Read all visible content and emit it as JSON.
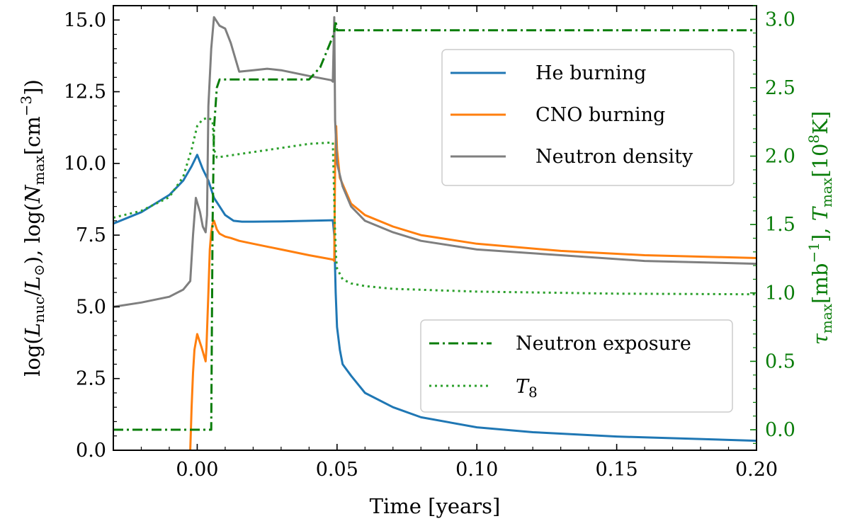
{
  "chart_data": {
    "type": "line",
    "xlabel": "Time [years]",
    "ylabel_left": "log(L_nuc/L_⊙), log(N_max[cm^−3])",
    "ylabel_right": "τ_max[mb^−1], T_max[10^8K]",
    "xlim": [
      -0.03,
      0.2
    ],
    "ylim_left": [
      0.0,
      15.5
    ],
    "ylim_right": [
      -0.15,
      3.1
    ],
    "x_ticks": [
      0.0,
      0.05,
      0.1,
      0.15,
      0.2
    ],
    "x_tick_labels": [
      "0.00",
      "0.05",
      "0.10",
      "0.15",
      "0.20"
    ],
    "y_left_ticks": [
      0.0,
      2.5,
      5.0,
      7.5,
      10.0,
      12.5,
      15.0
    ],
    "y_left_tick_labels": [
      "0.0",
      "2.5",
      "5.0",
      "7.5",
      "10.0",
      "12.5",
      "15.0"
    ],
    "y_right_ticks": [
      0.0,
      0.5,
      1.0,
      1.5,
      2.0,
      2.5,
      3.0
    ],
    "y_right_tick_labels": [
      "0.0",
      "0.5",
      "1.0",
      "1.5",
      "2.0",
      "2.5",
      "3.0"
    ],
    "legend_top": {
      "position": "upper-right",
      "entries": [
        "He burning",
        "CNO burning",
        "Neutron density"
      ]
    },
    "legend_bottom": {
      "position": "lower-right",
      "entries": [
        "Neutron exposure",
        "T_8"
      ]
    },
    "series": [
      {
        "name": "He burning",
        "axis": "left",
        "color": "#1f77b4",
        "style": "solid",
        "x": [
          -0.03,
          -0.02,
          -0.01,
          -0.005,
          -0.002,
          0.0,
          0.002,
          0.004,
          0.006,
          0.008,
          0.01,
          0.013,
          0.016,
          0.02,
          0.03,
          0.04,
          0.0485,
          0.049,
          0.0495,
          0.05,
          0.051,
          0.052,
          0.055,
          0.06,
          0.07,
          0.08,
          0.1,
          0.12,
          0.15,
          0.2
        ],
        "y": [
          7.9,
          8.3,
          8.9,
          9.4,
          9.9,
          10.3,
          9.8,
          9.4,
          8.8,
          8.5,
          8.2,
          8.0,
          7.97,
          7.97,
          7.98,
          8.0,
          8.02,
          7.5,
          5.5,
          4.3,
          3.5,
          3.0,
          2.6,
          2.0,
          1.5,
          1.15,
          0.8,
          0.63,
          0.48,
          0.33
        ]
      },
      {
        "name": "CNO burning",
        "axis": "left",
        "color": "#ff7f0e",
        "style": "solid",
        "x": [
          -0.0025,
          -0.002,
          -0.0015,
          -0.001,
          0.0,
          0.0015,
          0.003,
          0.0033,
          0.004,
          0.0045,
          0.005,
          0.0055,
          0.006,
          0.007,
          0.008,
          0.01,
          0.012,
          0.015,
          0.02,
          0.03,
          0.04,
          0.0485,
          0.049,
          0.0493,
          0.0497,
          0.05,
          0.051,
          0.055,
          0.06,
          0.07,
          0.08,
          0.1,
          0.13,
          0.16,
          0.2
        ],
        "y": [
          0.0,
          1.5,
          2.7,
          3.5,
          4.05,
          3.6,
          3.1,
          3.6,
          5.5,
          7.0,
          7.6,
          7.9,
          8.0,
          7.7,
          7.55,
          7.45,
          7.4,
          7.3,
          7.2,
          7.0,
          6.8,
          6.65,
          6.6,
          10.0,
          11.3,
          10.5,
          9.5,
          8.6,
          8.2,
          7.8,
          7.5,
          7.2,
          6.95,
          6.8,
          6.7
        ]
      },
      {
        "name": "Neutron density",
        "axis": "left",
        "color": "#7f7f7f",
        "style": "solid",
        "x": [
          -0.03,
          -0.02,
          -0.01,
          -0.005,
          -0.0025,
          -0.0015,
          -0.0005,
          0.001,
          0.002,
          0.003,
          0.0035,
          0.004,
          0.005,
          0.006,
          0.008,
          0.01,
          0.012,
          0.015,
          0.02,
          0.025,
          0.03,
          0.04,
          0.048,
          0.0485,
          0.049,
          0.0493,
          0.05,
          0.052,
          0.055,
          0.06,
          0.07,
          0.08,
          0.1,
          0.13,
          0.16,
          0.2
        ],
        "y": [
          5.0,
          5.15,
          5.35,
          5.6,
          5.9,
          7.5,
          8.8,
          8.3,
          7.8,
          7.6,
          8.2,
          12.0,
          14.0,
          15.1,
          14.8,
          14.7,
          14.2,
          13.2,
          13.25,
          13.3,
          13.25,
          13.05,
          12.9,
          12.85,
          15.1,
          11.5,
          10.0,
          9.2,
          8.5,
          8.0,
          7.6,
          7.3,
          7.0,
          6.8,
          6.6,
          6.5
        ]
      },
      {
        "name": "Neutron exposure",
        "axis": "right",
        "color": "#0a7d0a",
        "style": "dashdot",
        "x": [
          -0.03,
          0.005,
          0.0055,
          0.006,
          0.007,
          0.008,
          0.01,
          0.02,
          0.04,
          0.044,
          0.047,
          0.049,
          0.0495,
          0.05,
          0.06,
          0.1,
          0.15,
          0.2
        ],
        "y": [
          0.0,
          0.0,
          1.5,
          2.2,
          2.5,
          2.56,
          2.56,
          2.56,
          2.56,
          2.65,
          2.8,
          2.9,
          2.99,
          2.92,
          2.92,
          2.92,
          2.92,
          2.92
        ]
      },
      {
        "name": "T_8",
        "axis": "right",
        "color": "#2ca02c",
        "style": "dotted",
        "x": [
          -0.03,
          -0.02,
          -0.01,
          -0.005,
          -0.002,
          0.0,
          0.002,
          0.004,
          0.0055,
          0.006,
          0.007,
          0.01,
          0.02,
          0.03,
          0.04,
          0.0485,
          0.0492,
          0.0497,
          0.05,
          0.052,
          0.055,
          0.06,
          0.07,
          0.1,
          0.15,
          0.2
        ],
        "y": [
          1.55,
          1.6,
          1.7,
          1.85,
          2.05,
          2.22,
          2.27,
          2.28,
          2.26,
          2.05,
          1.99,
          2.0,
          2.03,
          2.06,
          2.09,
          2.1,
          1.5,
          1.25,
          1.18,
          1.1,
          1.07,
          1.05,
          1.03,
          1.01,
          0.995,
          0.99
        ]
      }
    ]
  }
}
